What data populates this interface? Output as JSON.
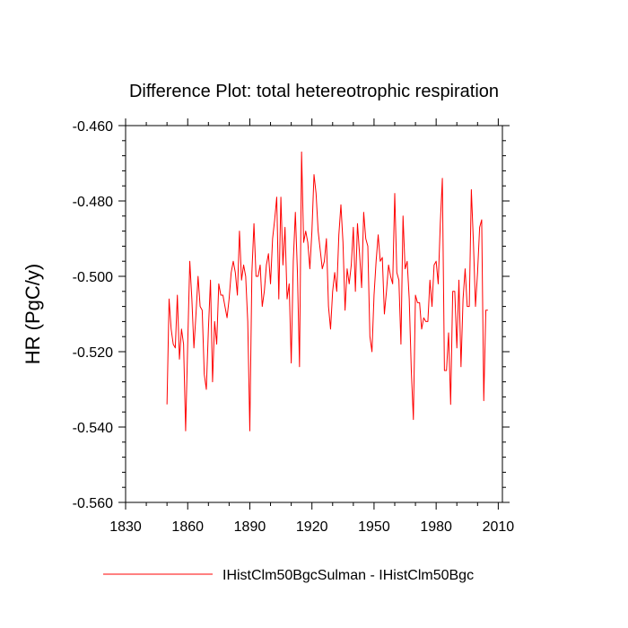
{
  "chart_data": {
    "type": "line",
    "title": "Difference Plot: total hetereotrophic respiration",
    "xlabel": "",
    "ylabel": "HR  (PgC/y)",
    "xlim": [
      1830,
      2012
    ],
    "ylim": [
      -0.56,
      -0.46
    ],
    "x_ticks": [
      1830,
      1860,
      1890,
      1920,
      1950,
      1980,
      2010
    ],
    "x_tick_labels": [
      "1830",
      "1860",
      "1890",
      "1920",
      "1950",
      "1980",
      "2010"
    ],
    "y_ticks": [
      -0.56,
      -0.54,
      -0.52,
      -0.5,
      -0.48,
      -0.46
    ],
    "y_tick_labels": [
      "-0.560",
      "-0.540",
      "-0.520",
      "-0.500",
      "-0.480",
      "-0.460"
    ],
    "grid": false,
    "legend_placement": "bottom",
    "series": [
      {
        "name": "IHistClm50BgcSulman - IHistClm50Bgc",
        "color": "#ff0000",
        "x_start": 1850,
        "x_step": 1,
        "values": [
          -0.534,
          -0.506,
          -0.514,
          -0.518,
          -0.519,
          -0.505,
          -0.522,
          -0.514,
          -0.518,
          -0.541,
          -0.518,
          -0.496,
          -0.506,
          -0.519,
          -0.51,
          -0.5,
          -0.508,
          -0.509,
          -0.526,
          -0.53,
          -0.514,
          -0.501,
          -0.528,
          -0.512,
          -0.518,
          -0.502,
          -0.505,
          -0.505,
          -0.508,
          -0.511,
          -0.506,
          -0.499,
          -0.496,
          -0.499,
          -0.505,
          -0.488,
          -0.501,
          -0.497,
          -0.5,
          -0.512,
          -0.541,
          -0.499,
          -0.486,
          -0.5,
          -0.5,
          -0.497,
          -0.508,
          -0.504,
          -0.497,
          -0.494,
          -0.502,
          -0.49,
          -0.485,
          -0.479,
          -0.506,
          -0.479,
          -0.497,
          -0.487,
          -0.506,
          -0.502,
          -0.523,
          -0.496,
          -0.483,
          -0.499,
          -0.524,
          -0.467,
          -0.491,
          -0.488,
          -0.491,
          -0.498,
          -0.488,
          -0.473,
          -0.478,
          -0.488,
          -0.493,
          -0.498,
          -0.496,
          -0.49,
          -0.508,
          -0.514,
          -0.504,
          -0.499,
          -0.504,
          -0.489,
          -0.481,
          -0.491,
          -0.509,
          -0.498,
          -0.502,
          -0.497,
          -0.487,
          -0.504,
          -0.486,
          -0.494,
          -0.503,
          -0.483,
          -0.49,
          -0.492,
          -0.516,
          -0.52,
          -0.505,
          -0.496,
          -0.489,
          -0.496,
          -0.495,
          -0.51,
          -0.504,
          -0.497,
          -0.5,
          -0.502,
          -0.478,
          -0.499,
          -0.501,
          -0.518,
          -0.484,
          -0.498,
          -0.496,
          -0.506,
          -0.525,
          -0.538,
          -0.505,
          -0.507,
          -0.507,
          -0.514,
          -0.511,
          -0.512,
          -0.512,
          -0.501,
          -0.508,
          -0.497,
          -0.496,
          -0.502,
          -0.486,
          -0.474,
          -0.525,
          -0.525,
          -0.515,
          -0.534,
          -0.504,
          -0.504,
          -0.519,
          -0.501,
          -0.524,
          -0.506,
          -0.498,
          -0.508,
          -0.508,
          -0.477,
          -0.491,
          -0.508,
          -0.499,
          -0.487,
          -0.485,
          -0.533,
          -0.509,
          -0.509
        ]
      }
    ]
  }
}
